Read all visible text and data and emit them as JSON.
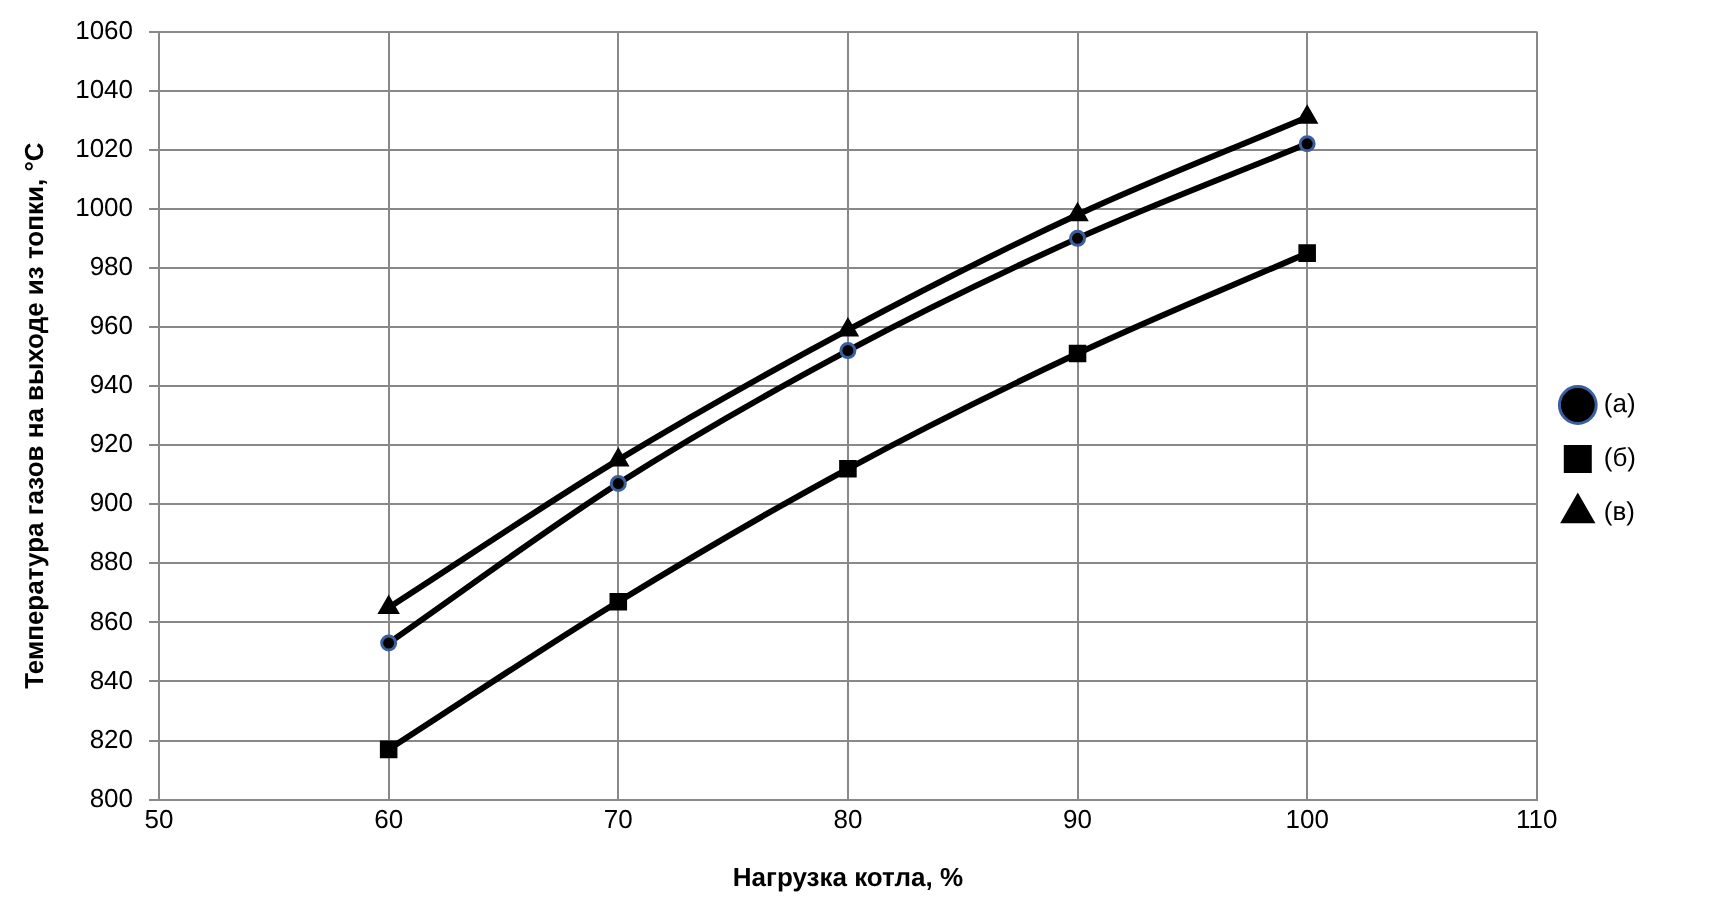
{
  "chart_data": {
    "type": "line",
    "xlabel": "Нагрузка котла, %",
    "ylabel": "Температура газов на выходе из топки, °C",
    "x": [
      60,
      70,
      80,
      90,
      100
    ],
    "series": [
      {
        "name": "(а)",
        "color": "#000000",
        "marker": "circle",
        "values": [
          853,
          907,
          952,
          990,
          1022
        ]
      },
      {
        "name": "(б)",
        "color": "#000000",
        "marker": "square",
        "values": [
          817,
          867,
          912,
          951,
          985
        ]
      },
      {
        "name": "(в)",
        "color": "#000000",
        "marker": "triangle",
        "values": [
          865,
          915,
          959,
          998,
          1031
        ]
      }
    ],
    "xlim": [
      50,
      110
    ],
    "xticks": [
      50,
      60,
      70,
      80,
      90,
      100,
      110
    ],
    "ylim": [
      800,
      1060
    ],
    "yticks": [
      800,
      820,
      840,
      860,
      880,
      900,
      920,
      940,
      960,
      980,
      1000,
      1020,
      1040,
      1060
    ],
    "grid": true,
    "legend": "right",
    "line_style": "solid"
  }
}
